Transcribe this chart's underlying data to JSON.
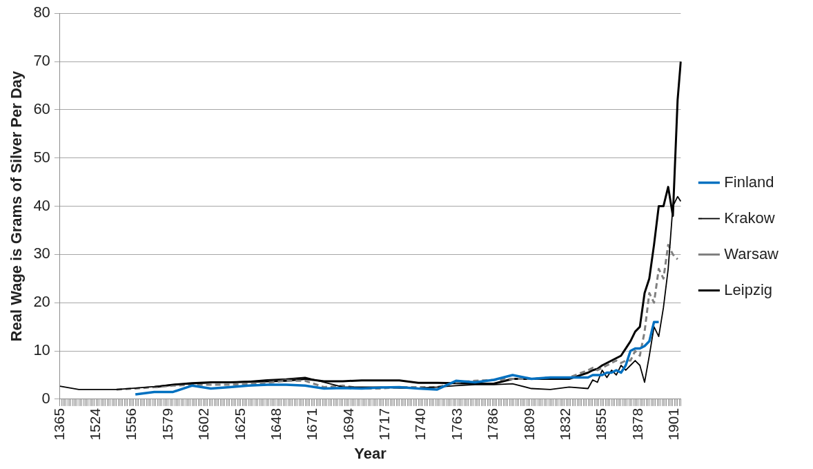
{
  "chart_data": {
    "type": "line",
    "xlabel": "Year",
    "ylabel": "Real Wage is Grams of Silver Per Day",
    "categories": [
      "1365",
      null,
      null,
      null,
      null,
      null,
      null,
      null,
      null,
      null,
      null,
      null,
      null,
      null,
      null,
      null,
      null,
      null,
      null,
      null,
      null,
      null,
      null,
      "1524",
      null,
      null,
      null,
      null,
      null,
      null,
      null,
      null,
      null,
      null,
      null,
      null,
      null,
      null,
      null,
      null,
      null,
      null,
      null,
      null,
      null,
      null,
      "1556",
      null,
      null,
      null,
      null,
      null,
      null,
      null,
      null,
      null,
      null,
      null,
      null,
      null,
      null,
      null,
      null,
      null,
      null,
      null,
      null,
      null,
      null,
      "1579",
      null,
      null,
      null,
      null,
      null,
      null,
      null,
      null,
      null,
      null,
      null,
      null,
      null,
      null,
      null,
      null,
      null,
      null,
      null,
      null,
      null,
      null,
      "1602",
      null,
      null,
      null,
      null,
      null,
      null,
      null,
      null,
      null,
      null,
      null,
      null,
      null,
      null,
      null,
      null,
      null,
      null,
      null,
      null,
      null,
      null,
      "1625",
      null,
      null,
      null,
      null,
      null,
      null,
      null,
      null,
      null,
      null,
      null,
      null,
      null,
      null,
      null,
      null,
      null,
      null,
      null,
      null,
      null,
      null,
      "1648",
      null,
      null,
      null,
      null,
      null,
      null,
      null,
      null,
      null,
      null,
      null,
      null,
      null,
      null,
      null,
      null,
      null,
      null,
      null,
      null,
      null,
      null,
      "1671",
      null,
      null,
      null,
      null,
      null,
      null,
      null,
      null,
      null,
      null,
      null,
      null,
      null,
      null,
      null,
      null,
      null,
      null,
      null,
      null,
      null,
      null,
      "1694",
      null,
      null,
      null,
      null,
      null,
      null,
      null,
      null,
      null,
      null,
      null,
      null,
      null,
      null,
      null,
      null,
      null,
      null,
      null,
      null,
      null,
      null,
      "1717",
      null,
      null,
      null,
      null,
      null,
      null,
      null,
      null,
      null,
      null,
      null,
      null,
      null,
      null,
      null,
      null,
      null,
      null,
      null,
      null,
      null,
      null,
      "1740",
      null,
      null,
      null,
      null,
      null,
      null,
      null,
      null,
      null,
      null,
      null,
      null,
      null,
      null,
      null,
      null,
      null,
      null,
      null,
      null,
      null,
      null,
      "1763",
      null,
      null,
      null,
      null,
      null,
      null,
      null,
      null,
      null,
      null,
      null,
      null,
      null,
      null,
      null,
      null,
      null,
      null,
      null,
      null,
      null,
      null,
      "1786",
      null,
      null,
      null,
      null,
      null,
      null,
      null,
      null,
      null,
      null,
      null,
      null,
      null,
      null,
      null,
      null,
      null,
      null,
      null,
      null,
      null,
      null,
      "1809",
      null,
      null,
      null,
      null,
      null,
      null,
      null,
      null,
      null,
      null,
      null,
      null,
      null,
      null,
      null,
      null,
      null,
      null,
      null,
      null,
      null,
      null,
      "1832",
      null,
      null,
      null,
      null,
      null,
      null,
      null,
      null,
      null,
      null,
      null,
      null,
      null,
      null,
      null,
      null,
      null,
      null,
      null,
      null,
      null,
      null,
      "1855",
      null,
      null,
      null,
      null,
      null,
      null,
      null,
      null,
      null,
      null,
      null,
      null,
      null,
      null,
      null,
      null,
      null,
      null,
      null,
      null,
      null,
      null,
      "1878",
      null,
      null,
      null,
      null,
      null,
      null,
      null,
      null,
      null,
      null,
      null,
      null,
      null,
      null,
      null,
      null,
      null,
      null,
      null,
      null,
      null,
      null,
      "1901",
      null,
      null,
      null,
      null
    ],
    "series": [
      {
        "name": "Finland",
        "color": "#0070c0",
        "line_style": "solid",
        "values": [
          null,
          null,
          null,
          null,
          null,
          null,
          null,
          null,
          null,
          null,
          null,
          null,
          null,
          null,
          null,
          null,
          null,
          null,
          null,
          null,
          null,
          null,
          null,
          null,
          null,
          null,
          null,
          null,
          null,
          null,
          null,
          null,
          null,
          null,
          null,
          null,
          null,
          null,
          null,
          null,
          null,
          null,
          null,
          null,
          null,
          null,
          null,
          null,
          1,
          null,
          null,
          null,
          null,
          null,
          null,
          null,
          null,
          null,
          null,
          null,
          1.5,
          null,
          null,
          null,
          null,
          null,
          null,
          null,
          null,
          null,
          null,
          null,
          1.5,
          null,
          null,
          null,
          null,
          null,
          null,
          null,
          null,
          null,
          null,
          null,
          2.8,
          null,
          null,
          null,
          null,
          null,
          null,
          null,
          null,
          null,
          null,
          null,
          2.2,
          null,
          null,
          null,
          null,
          null,
          null,
          null,
          null,
          null,
          null,
          null,
          2.5,
          null,
          null,
          null,
          null,
          null,
          null,
          null,
          null,
          null,
          null,
          null,
          2.8,
          null,
          null,
          null,
          null,
          null,
          null,
          null,
          null,
          null,
          null,
          null,
          3,
          null,
          null,
          null,
          null,
          null,
          null,
          null,
          null,
          null,
          null,
          null,
          3,
          null,
          null,
          null,
          null,
          null,
          null,
          null,
          null,
          null,
          null,
          null,
          2.8,
          null,
          null,
          null,
          null,
          null,
          null,
          null,
          null,
          null,
          null,
          null,
          2.2,
          null,
          null,
          null,
          null,
          null,
          null,
          null,
          null,
          null,
          null,
          null,
          2.3,
          null,
          null,
          null,
          null,
          null,
          null,
          null,
          null,
          null,
          null,
          null,
          2.2,
          null,
          null,
          null,
          null,
          null,
          null,
          null,
          null,
          null,
          null,
          null,
          2.4,
          null,
          null,
          null,
          null,
          null,
          null,
          null,
          null,
          null,
          null,
          null,
          2.5,
          null,
          null,
          null,
          null,
          null,
          null,
          null,
          null,
          null,
          null,
          null,
          2.2,
          null,
          null,
          null,
          null,
          null,
          null,
          null,
          null,
          null,
          null,
          null,
          2,
          null,
          null,
          null,
          null,
          null,
          null,
          null,
          null,
          null,
          null,
          null,
          3.8,
          null,
          null,
          null,
          null,
          null,
          null,
          null,
          null,
          null,
          null,
          null,
          3.5,
          null,
          null,
          null,
          null,
          null,
          null,
          null,
          null,
          null,
          null,
          null,
          4,
          null,
          null,
          null,
          null,
          null,
          null,
          null,
          null,
          null,
          null,
          null,
          5,
          null,
          null,
          null,
          null,
          null,
          null,
          null,
          null,
          null,
          null,
          null,
          4.2,
          null,
          null,
          null,
          null,
          null,
          null,
          null,
          null,
          null,
          null,
          null,
          4.5,
          null,
          null,
          null,
          null,
          null,
          null,
          null,
          null,
          null,
          null,
          null,
          4.5,
          null,
          null,
          null,
          null,
          null,
          null,
          null,
          null,
          null,
          null,
          null,
          4.5,
          null,
          null,
          5,
          null,
          null,
          5,
          null,
          null,
          5,
          null,
          null,
          5.5,
          null,
          null,
          5.5,
          null,
          null,
          6,
          null,
          null,
          5.5,
          null,
          null,
          7,
          null,
          null,
          10,
          null,
          null,
          10.5,
          null,
          null,
          10.5,
          null,
          null,
          11,
          null,
          null,
          12,
          null,
          null,
          16,
          null,
          null,
          16,
          null,
          null,
          null,
          null,
          null,
          null,
          null,
          null,
          null,
          null,
          null,
          null,
          null,
          null
        ]
      },
      {
        "name": "Krakow",
        "color": "#000000",
        "line_style": "solid",
        "values": [
          2.7,
          null,
          null,
          null,
          null,
          null,
          null,
          null,
          null,
          null,
          null,
          null,
          2,
          null,
          null,
          null,
          null,
          null,
          null,
          null,
          null,
          null,
          null,
          null,
          2,
          null,
          null,
          null,
          null,
          null,
          null,
          null,
          null,
          null,
          null,
          null,
          2,
          null,
          null,
          null,
          null,
          null,
          null,
          null,
          null,
          null,
          null,
          null,
          2.3,
          null,
          null,
          null,
          null,
          null,
          null,
          null,
          null,
          null,
          null,
          null,
          2.6,
          null,
          null,
          null,
          null,
          null,
          null,
          null,
          null,
          null,
          null,
          null,
          3,
          null,
          null,
          null,
          null,
          null,
          null,
          null,
          null,
          null,
          null,
          null,
          3.2,
          null,
          null,
          null,
          null,
          null,
          null,
          null,
          null,
          null,
          null,
          null,
          3.4,
          null,
          null,
          null,
          null,
          null,
          null,
          null,
          null,
          null,
          null,
          null,
          3.5,
          null,
          null,
          null,
          null,
          null,
          null,
          null,
          null,
          null,
          null,
          null,
          3.7,
          null,
          null,
          null,
          null,
          null,
          null,
          null,
          null,
          null,
          null,
          null,
          4,
          null,
          null,
          null,
          null,
          null,
          null,
          null,
          null,
          null,
          null,
          null,
          4.2,
          null,
          null,
          null,
          null,
          null,
          null,
          null,
          null,
          null,
          null,
          null,
          4.5,
          null,
          null,
          null,
          null,
          null,
          null,
          null,
          null,
          null,
          null,
          null,
          3.5,
          null,
          null,
          null,
          null,
          null,
          null,
          null,
          null,
          null,
          null,
          null,
          2.5,
          null,
          null,
          null,
          null,
          null,
          null,
          null,
          null,
          null,
          null,
          null,
          2.5,
          null,
          null,
          null,
          null,
          null,
          null,
          null,
          null,
          null,
          null,
          null,
          2.5,
          null,
          null,
          null,
          null,
          null,
          null,
          null,
          null,
          null,
          null,
          null,
          2.3,
          null,
          null,
          null,
          null,
          null,
          null,
          null,
          null,
          null,
          null,
          null,
          2.3,
          null,
          null,
          null,
          null,
          null,
          null,
          null,
          null,
          null,
          null,
          null,
          2.5,
          null,
          null,
          null,
          null,
          null,
          null,
          null,
          null,
          null,
          null,
          null,
          2.8,
          null,
          null,
          null,
          null,
          null,
          null,
          null,
          null,
          null,
          null,
          null,
          3,
          null,
          null,
          null,
          null,
          null,
          null,
          null,
          null,
          null,
          null,
          null,
          3,
          null,
          null,
          null,
          null,
          null,
          null,
          null,
          null,
          null,
          null,
          null,
          3.2,
          null,
          null,
          null,
          null,
          null,
          null,
          null,
          null,
          null,
          null,
          null,
          2.2,
          null,
          null,
          null,
          null,
          null,
          null,
          null,
          null,
          null,
          null,
          null,
          2,
          null,
          null,
          null,
          null,
          null,
          null,
          null,
          null,
          null,
          null,
          null,
          2.5,
          null,
          null,
          null,
          null,
          null,
          null,
          null,
          null,
          null,
          null,
          null,
          2.2,
          null,
          null,
          4,
          null,
          null,
          3.5,
          null,
          null,
          6,
          null,
          null,
          4.5,
          null,
          null,
          6,
          null,
          null,
          5,
          null,
          null,
          7,
          null,
          null,
          6,
          null,
          null,
          7,
          null,
          null,
          8,
          null,
          null,
          7,
          null,
          null,
          3.5,
          null,
          null,
          9,
          null,
          null,
          15,
          null,
          null,
          13,
          null,
          null,
          19,
          null,
          null,
          27,
          null,
          null,
          40,
          null,
          null,
          42,
          null,
          41
        ]
      },
      {
        "name": "Warsaw",
        "color": "#808080",
        "line_style": "dashed",
        "values": [
          null,
          null,
          null,
          null,
          null,
          null,
          null,
          null,
          null,
          null,
          null,
          null,
          null,
          null,
          null,
          null,
          null,
          null,
          null,
          null,
          null,
          null,
          null,
          null,
          null,
          null,
          null,
          null,
          null,
          null,
          null,
          null,
          null,
          null,
          null,
          null,
          2,
          null,
          null,
          null,
          null,
          null,
          null,
          null,
          null,
          null,
          null,
          null,
          2.2,
          null,
          null,
          null,
          null,
          null,
          null,
          null,
          null,
          null,
          null,
          null,
          2.5,
          null,
          null,
          null,
          null,
          null,
          null,
          null,
          null,
          null,
          null,
          null,
          2.8,
          null,
          null,
          null,
          null,
          null,
          null,
          null,
          null,
          null,
          null,
          null,
          3,
          null,
          null,
          null,
          null,
          null,
          null,
          null,
          null,
          null,
          null,
          null,
          3,
          null,
          null,
          null,
          null,
          null,
          null,
          null,
          null,
          null,
          null,
          null,
          3,
          null,
          null,
          null,
          null,
          null,
          null,
          null,
          null,
          null,
          null,
          null,
          3.2,
          null,
          null,
          null,
          null,
          null,
          null,
          null,
          null,
          null,
          null,
          null,
          3.4,
          null,
          null,
          null,
          null,
          null,
          null,
          null,
          null,
          null,
          null,
          null,
          3.8,
          null,
          null,
          null,
          null,
          null,
          null,
          null,
          null,
          null,
          null,
          null,
          3.8,
          null,
          null,
          null,
          null,
          null,
          null,
          null,
          null,
          null,
          null,
          null,
          2.5,
          null,
          null,
          null,
          null,
          null,
          null,
          null,
          null,
          null,
          null,
          null,
          2.8,
          null,
          null,
          null,
          null,
          null,
          null,
          null,
          null,
          null,
          null,
          null,
          2.2,
          null,
          null,
          null,
          null,
          null,
          null,
          null,
          null,
          null,
          null,
          null,
          2.2,
          null,
          null,
          null,
          null,
          null,
          null,
          null,
          null,
          null,
          null,
          null,
          2.5,
          null,
          null,
          null,
          null,
          null,
          null,
          null,
          null,
          null,
          null,
          null,
          2.5,
          null,
          null,
          null,
          null,
          null,
          null,
          null,
          null,
          null,
          null,
          null,
          2.5,
          null,
          null,
          null,
          null,
          null,
          null,
          null,
          null,
          null,
          null,
          null,
          3.5,
          null,
          null,
          null,
          null,
          null,
          null,
          null,
          null,
          null,
          null,
          null,
          3.8,
          null,
          null,
          null,
          null,
          null,
          null,
          null,
          null,
          null,
          null,
          null,
          4,
          null,
          null,
          null,
          null,
          null,
          null,
          null,
          null,
          null,
          null,
          null,
          4.2,
          null,
          null,
          null,
          null,
          null,
          null,
          null,
          null,
          null,
          null,
          null,
          4.2,
          null,
          null,
          null,
          null,
          null,
          null,
          null,
          null,
          null,
          null,
          null,
          4.5,
          null,
          null,
          null,
          null,
          null,
          null,
          null,
          null,
          null,
          null,
          null,
          4.5,
          null,
          null,
          null,
          null,
          null,
          null,
          null,
          null,
          null,
          null,
          null,
          6,
          null,
          null,
          6.5,
          null,
          null,
          6,
          null,
          null,
          6.5,
          null,
          null,
          7,
          null,
          null,
          7.5,
          null,
          null,
          8,
          null,
          null,
          7.5,
          null,
          null,
          8,
          null,
          null,
          8,
          null,
          null,
          10,
          null,
          null,
          9,
          null,
          null,
          14,
          null,
          null,
          22,
          null,
          null,
          20,
          null,
          null,
          27,
          null,
          null,
          25,
          null,
          null,
          32,
          null,
          null,
          30,
          null,
          null,
          29,
          null,
          null
        ]
      },
      {
        "name": "Leipzig",
        "color": "#000000",
        "line_style": "solid",
        "values": [
          null,
          null,
          null,
          null,
          null,
          null,
          null,
          null,
          null,
          null,
          null,
          null,
          null,
          null,
          null,
          null,
          null,
          null,
          null,
          null,
          null,
          null,
          null,
          null,
          null,
          null,
          null,
          null,
          null,
          null,
          null,
          null,
          null,
          null,
          null,
          null,
          null,
          null,
          null,
          null,
          null,
          null,
          null,
          null,
          null,
          null,
          null,
          null,
          null,
          null,
          null,
          null,
          null,
          null,
          null,
          null,
          null,
          null,
          null,
          null,
          2.5,
          null,
          null,
          null,
          null,
          null,
          null,
          null,
          null,
          null,
          null,
          null,
          3,
          null,
          null,
          null,
          null,
          null,
          null,
          null,
          null,
          null,
          null,
          null,
          3.3,
          null,
          null,
          null,
          null,
          null,
          null,
          null,
          null,
          null,
          null,
          null,
          3.5,
          null,
          null,
          null,
          null,
          null,
          null,
          null,
          null,
          null,
          null,
          null,
          3.5,
          null,
          null,
          null,
          null,
          null,
          null,
          null,
          null,
          null,
          null,
          null,
          3.6,
          null,
          null,
          null,
          null,
          null,
          null,
          null,
          null,
          null,
          null,
          null,
          3.7,
          null,
          null,
          null,
          null,
          null,
          null,
          null,
          null,
          null,
          null,
          null,
          3.8,
          null,
          null,
          null,
          null,
          null,
          null,
          null,
          null,
          null,
          null,
          null,
          4.2,
          null,
          null,
          null,
          null,
          null,
          null,
          null,
          null,
          null,
          null,
          null,
          3.7,
          null,
          null,
          null,
          null,
          null,
          null,
          null,
          null,
          null,
          null,
          null,
          3.7,
          null,
          null,
          null,
          null,
          null,
          null,
          null,
          null,
          null,
          null,
          null,
          3.9,
          null,
          null,
          null,
          null,
          null,
          null,
          null,
          null,
          null,
          null,
          null,
          3.9,
          null,
          null,
          null,
          null,
          null,
          null,
          null,
          null,
          null,
          null,
          null,
          3.9,
          null,
          null,
          null,
          null,
          null,
          null,
          null,
          null,
          null,
          null,
          null,
          3.4,
          null,
          null,
          null,
          null,
          null,
          null,
          null,
          null,
          null,
          null,
          null,
          3.4,
          null,
          null,
          null,
          null,
          null,
          null,
          null,
          null,
          null,
          null,
          null,
          3.3,
          null,
          null,
          null,
          null,
          null,
          null,
          null,
          null,
          null,
          null,
          null,
          3.2,
          null,
          null,
          null,
          null,
          null,
          null,
          null,
          null,
          null,
          null,
          null,
          3.2,
          null,
          null,
          null,
          null,
          null,
          null,
          null,
          null,
          null,
          null,
          null,
          4.2,
          null,
          null,
          null,
          null,
          null,
          null,
          null,
          null,
          null,
          null,
          null,
          4.2,
          null,
          null,
          null,
          null,
          null,
          null,
          null,
          null,
          null,
          null,
          null,
          4.2,
          null,
          null,
          null,
          null,
          null,
          null,
          null,
          null,
          null,
          null,
          null,
          4.2,
          null,
          null,
          null,
          null,
          null,
          null,
          null,
          null,
          null,
          null,
          null,
          5.5,
          null,
          null,
          6,
          null,
          null,
          6.3,
          null,
          null,
          7,
          null,
          null,
          7.5,
          null,
          null,
          8,
          null,
          null,
          8.5,
          null,
          null,
          9,
          null,
          null,
          10.5,
          null,
          null,
          12,
          null,
          null,
          14,
          null,
          null,
          15,
          null,
          null,
          22,
          null,
          null,
          25,
          null,
          null,
          32,
          null,
          null,
          40,
          null,
          null,
          40,
          null,
          null,
          44,
          null,
          null,
          38,
          null,
          null,
          62,
          null,
          70
        ]
      }
    ],
    "ylim": [
      0,
      80
    ],
    "yticks": [
      0,
      10,
      20,
      30,
      40,
      50,
      60,
      70,
      80
    ],
    "grid": "y",
    "legend": "right",
    "marker": "none"
  }
}
